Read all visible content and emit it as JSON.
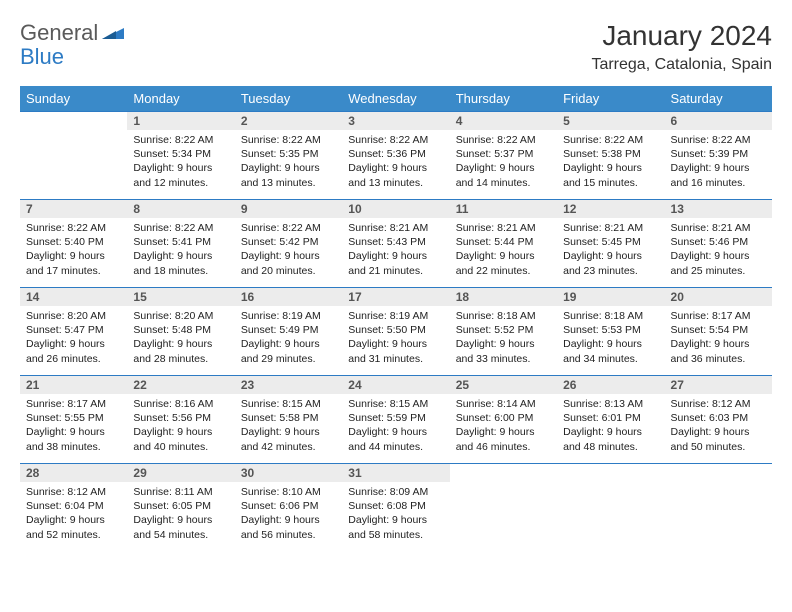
{
  "logo": {
    "text1": "General",
    "text2": "Blue"
  },
  "title": "January 2024",
  "location": "Tarrega, Catalonia, Spain",
  "colors": {
    "header_bg": "#3a8ac9",
    "header_text": "#ffffff",
    "daynum_bg": "#ececec",
    "daynum_text": "#555555",
    "border": "#2d7bc4",
    "logo_general": "#5a5a5a",
    "logo_blue": "#2d7bc4"
  },
  "weekdays": [
    "Sunday",
    "Monday",
    "Tuesday",
    "Wednesday",
    "Thursday",
    "Friday",
    "Saturday"
  ],
  "start_offset": 1,
  "days": [
    {
      "n": "1",
      "sunrise": "8:22 AM",
      "sunset": "5:34 PM",
      "dl1": "Daylight: 9 hours",
      "dl2": "and 12 minutes."
    },
    {
      "n": "2",
      "sunrise": "8:22 AM",
      "sunset": "5:35 PM",
      "dl1": "Daylight: 9 hours",
      "dl2": "and 13 minutes."
    },
    {
      "n": "3",
      "sunrise": "8:22 AM",
      "sunset": "5:36 PM",
      "dl1": "Daylight: 9 hours",
      "dl2": "and 13 minutes."
    },
    {
      "n": "4",
      "sunrise": "8:22 AM",
      "sunset": "5:37 PM",
      "dl1": "Daylight: 9 hours",
      "dl2": "and 14 minutes."
    },
    {
      "n": "5",
      "sunrise": "8:22 AM",
      "sunset": "5:38 PM",
      "dl1": "Daylight: 9 hours",
      "dl2": "and 15 minutes."
    },
    {
      "n": "6",
      "sunrise": "8:22 AM",
      "sunset": "5:39 PM",
      "dl1": "Daylight: 9 hours",
      "dl2": "and 16 minutes."
    },
    {
      "n": "7",
      "sunrise": "8:22 AM",
      "sunset": "5:40 PM",
      "dl1": "Daylight: 9 hours",
      "dl2": "and 17 minutes."
    },
    {
      "n": "8",
      "sunrise": "8:22 AM",
      "sunset": "5:41 PM",
      "dl1": "Daylight: 9 hours",
      "dl2": "and 18 minutes."
    },
    {
      "n": "9",
      "sunrise": "8:22 AM",
      "sunset": "5:42 PM",
      "dl1": "Daylight: 9 hours",
      "dl2": "and 20 minutes."
    },
    {
      "n": "10",
      "sunrise": "8:21 AM",
      "sunset": "5:43 PM",
      "dl1": "Daylight: 9 hours",
      "dl2": "and 21 minutes."
    },
    {
      "n": "11",
      "sunrise": "8:21 AM",
      "sunset": "5:44 PM",
      "dl1": "Daylight: 9 hours",
      "dl2": "and 22 minutes."
    },
    {
      "n": "12",
      "sunrise": "8:21 AM",
      "sunset": "5:45 PM",
      "dl1": "Daylight: 9 hours",
      "dl2": "and 23 minutes."
    },
    {
      "n": "13",
      "sunrise": "8:21 AM",
      "sunset": "5:46 PM",
      "dl1": "Daylight: 9 hours",
      "dl2": "and 25 minutes."
    },
    {
      "n": "14",
      "sunrise": "8:20 AM",
      "sunset": "5:47 PM",
      "dl1": "Daylight: 9 hours",
      "dl2": "and 26 minutes."
    },
    {
      "n": "15",
      "sunrise": "8:20 AM",
      "sunset": "5:48 PM",
      "dl1": "Daylight: 9 hours",
      "dl2": "and 28 minutes."
    },
    {
      "n": "16",
      "sunrise": "8:19 AM",
      "sunset": "5:49 PM",
      "dl1": "Daylight: 9 hours",
      "dl2": "and 29 minutes."
    },
    {
      "n": "17",
      "sunrise": "8:19 AM",
      "sunset": "5:50 PM",
      "dl1": "Daylight: 9 hours",
      "dl2": "and 31 minutes."
    },
    {
      "n": "18",
      "sunrise": "8:18 AM",
      "sunset": "5:52 PM",
      "dl1": "Daylight: 9 hours",
      "dl2": "and 33 minutes."
    },
    {
      "n": "19",
      "sunrise": "8:18 AM",
      "sunset": "5:53 PM",
      "dl1": "Daylight: 9 hours",
      "dl2": "and 34 minutes."
    },
    {
      "n": "20",
      "sunrise": "8:17 AM",
      "sunset": "5:54 PM",
      "dl1": "Daylight: 9 hours",
      "dl2": "and 36 minutes."
    },
    {
      "n": "21",
      "sunrise": "8:17 AM",
      "sunset": "5:55 PM",
      "dl1": "Daylight: 9 hours",
      "dl2": "and 38 minutes."
    },
    {
      "n": "22",
      "sunrise": "8:16 AM",
      "sunset": "5:56 PM",
      "dl1": "Daylight: 9 hours",
      "dl2": "and 40 minutes."
    },
    {
      "n": "23",
      "sunrise": "8:15 AM",
      "sunset": "5:58 PM",
      "dl1": "Daylight: 9 hours",
      "dl2": "and 42 minutes."
    },
    {
      "n": "24",
      "sunrise": "8:15 AM",
      "sunset": "5:59 PM",
      "dl1": "Daylight: 9 hours",
      "dl2": "and 44 minutes."
    },
    {
      "n": "25",
      "sunrise": "8:14 AM",
      "sunset": "6:00 PM",
      "dl1": "Daylight: 9 hours",
      "dl2": "and 46 minutes."
    },
    {
      "n": "26",
      "sunrise": "8:13 AM",
      "sunset": "6:01 PM",
      "dl1": "Daylight: 9 hours",
      "dl2": "and 48 minutes."
    },
    {
      "n": "27",
      "sunrise": "8:12 AM",
      "sunset": "6:03 PM",
      "dl1": "Daylight: 9 hours",
      "dl2": "and 50 minutes."
    },
    {
      "n": "28",
      "sunrise": "8:12 AM",
      "sunset": "6:04 PM",
      "dl1": "Daylight: 9 hours",
      "dl2": "and 52 minutes."
    },
    {
      "n": "29",
      "sunrise": "8:11 AM",
      "sunset": "6:05 PM",
      "dl1": "Daylight: 9 hours",
      "dl2": "and 54 minutes."
    },
    {
      "n": "30",
      "sunrise": "8:10 AM",
      "sunset": "6:06 PM",
      "dl1": "Daylight: 9 hours",
      "dl2": "and 56 minutes."
    },
    {
      "n": "31",
      "sunrise": "8:09 AM",
      "sunset": "6:08 PM",
      "dl1": "Daylight: 9 hours",
      "dl2": "and 58 minutes."
    }
  ]
}
